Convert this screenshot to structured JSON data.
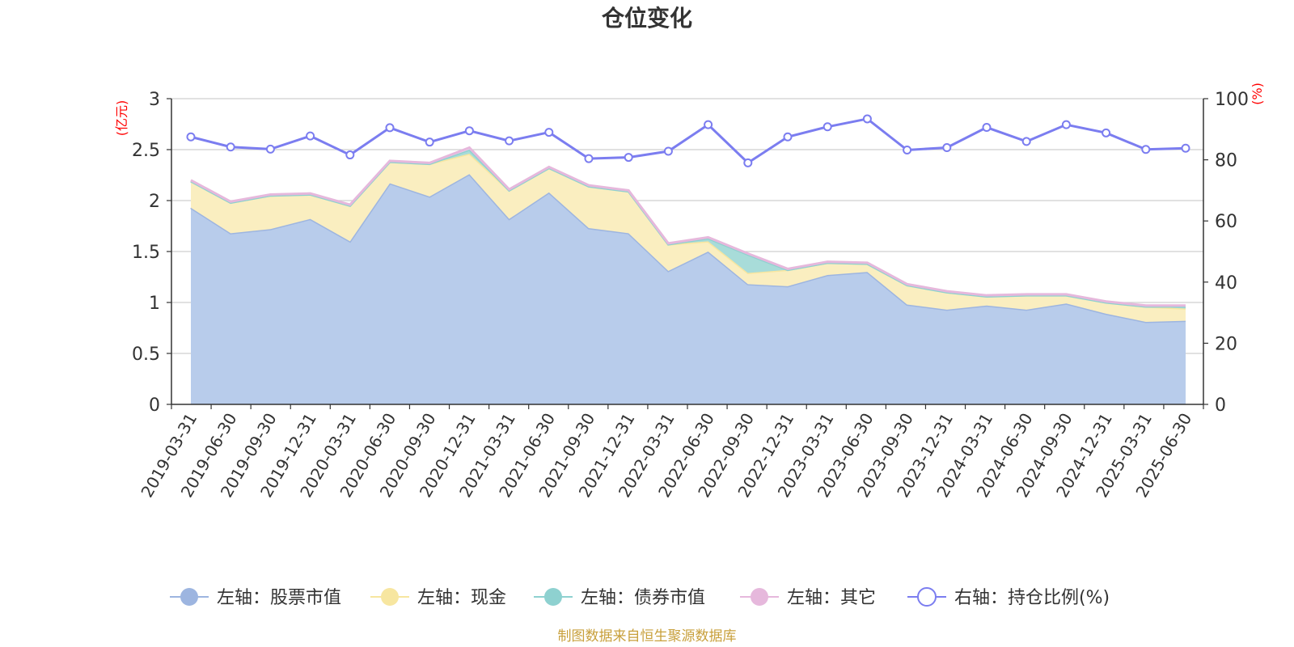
{
  "chart_data": {
    "type": "area",
    "title": "仓位变化",
    "left_unit": "(亿元)",
    "right_unit": "(%)",
    "left_ylim": [
      0,
      3
    ],
    "left_ticks": [
      "0",
      "0.5",
      "1",
      "1.5",
      "2",
      "2.5",
      "3"
    ],
    "right_ylim": [
      0,
      100
    ],
    "right_ticks": [
      "0",
      "20",
      "40",
      "60",
      "80",
      "100"
    ],
    "grid": true,
    "legend_position": "bottom",
    "categories": [
      "2019-03-31",
      "2019-06-30",
      "2019-09-30",
      "2019-12-31",
      "2020-03-31",
      "2020-06-30",
      "2020-09-30",
      "2020-12-31",
      "2021-03-31",
      "2021-06-30",
      "2021-09-30",
      "2021-12-31",
      "2022-03-31",
      "2022-06-30",
      "2022-09-30",
      "2022-12-31",
      "2023-03-31",
      "2023-06-30",
      "2023-09-30",
      "2023-12-31",
      "2024-03-31",
      "2024-06-30",
      "2024-09-30",
      "2024-12-31",
      "2025-03-31",
      "2025-06-30"
    ],
    "series": [
      {
        "name": "左轴：股票市值",
        "axis": "left",
        "stack": true,
        "color": "#9db5e0",
        "fill": "#b8cceb",
        "values": [
          1.93,
          1.68,
          1.72,
          1.82,
          1.6,
          2.17,
          2.04,
          2.26,
          1.82,
          2.08,
          1.73,
          1.68,
          1.31,
          1.5,
          1.18,
          1.16,
          1.27,
          1.3,
          0.98,
          0.93,
          0.97,
          0.93,
          0.99,
          0.89,
          0.81,
          0.82
        ]
      },
      {
        "name": "左轴：现金",
        "axis": "left",
        "stack": true,
        "color": "#f7e6a0",
        "fill": "#faeec0",
        "values": [
          0.26,
          0.3,
          0.33,
          0.24,
          0.35,
          0.21,
          0.32,
          0.2,
          0.28,
          0.24,
          0.41,
          0.41,
          0.26,
          0.1,
          0.11,
          0.16,
          0.12,
          0.08,
          0.19,
          0.17,
          0.09,
          0.14,
          0.08,
          0.11,
          0.15,
          0.12
        ]
      },
      {
        "name": "左轴：债券市值",
        "axis": "left",
        "stack": true,
        "color": "#8ed1d0",
        "fill": "#a8dcd9",
        "values": [
          0,
          0,
          0,
          0,
          0,
          0,
          0,
          0.04,
          0,
          0,
          0,
          0,
          0,
          0.03,
          0.18,
          0,
          0,
          0,
          0,
          0,
          0,
          0,
          0,
          0,
          0,
          0.02
        ]
      },
      {
        "name": "左轴：其它",
        "axis": "left",
        "stack": true,
        "color": "#e6b8dc",
        "fill": "#f0cfe8",
        "values": [
          0.01,
          0.01,
          0.01,
          0.01,
          0.01,
          0.01,
          0.01,
          0.02,
          0.01,
          0.01,
          0.01,
          0.01,
          0.01,
          0.01,
          0.01,
          0.01,
          0.01,
          0.01,
          0.01,
          0.01,
          0.01,
          0.01,
          0.01,
          0.01,
          0.01,
          0.01
        ]
      },
      {
        "name": "右轴：持仓比例(%)",
        "axis": "right",
        "stack": false,
        "color": "#7b7df0",
        "values": [
          87.5,
          84.2,
          83.5,
          87.8,
          81.6,
          90.5,
          85.8,
          89.5,
          86.2,
          89.0,
          80.4,
          80.8,
          82.8,
          91.5,
          79.0,
          87.5,
          90.8,
          93.4,
          83.2,
          84.0,
          90.6,
          86.0,
          91.5,
          88.8,
          83.4,
          83.8
        ]
      }
    ],
    "source": "制图数据来自恒生聚源数据库"
  }
}
